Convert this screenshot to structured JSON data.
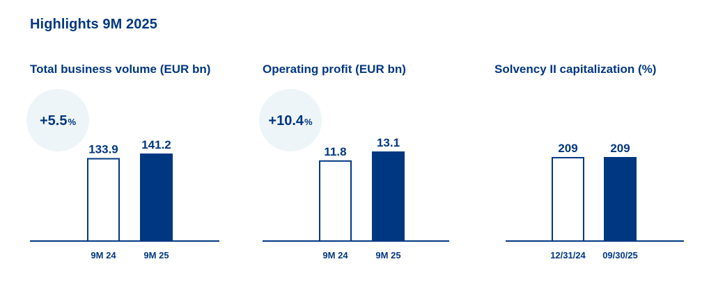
{
  "title": "Highlights 9M 2025",
  "colors": {
    "primary": "#003781",
    "badge_bg": "#eef5f8",
    "outline_fill": "#ffffff"
  },
  "chart_data": [
    {
      "type": "bar",
      "title": "Total business volume (EUR bn)",
      "categories": [
        "9M 24",
        "9M 25"
      ],
      "values": [
        133.9,
        141.2
      ],
      "value_labels": [
        "133.9",
        "141.2"
      ],
      "change": {
        "value": "+5.5",
        "unit": "%"
      },
      "bar_styles": [
        "outline",
        "filled"
      ]
    },
    {
      "type": "bar",
      "title": "Operating profit (EUR bn)",
      "categories": [
        "9M 24",
        "9M 25"
      ],
      "values": [
        11.8,
        13.1
      ],
      "value_labels": [
        "11.8",
        "13.1"
      ],
      "change": {
        "value": "+10.4",
        "unit": "%"
      },
      "bar_styles": [
        "outline",
        "filled"
      ]
    },
    {
      "type": "bar",
      "title": "Solvency II capitalization (%)",
      "categories": [
        "12/31/24",
        "09/30/25"
      ],
      "values": [
        209,
        209
      ],
      "value_labels": [
        "209",
        "209"
      ],
      "change": null,
      "bar_styles": [
        "outline",
        "filled"
      ]
    }
  ]
}
